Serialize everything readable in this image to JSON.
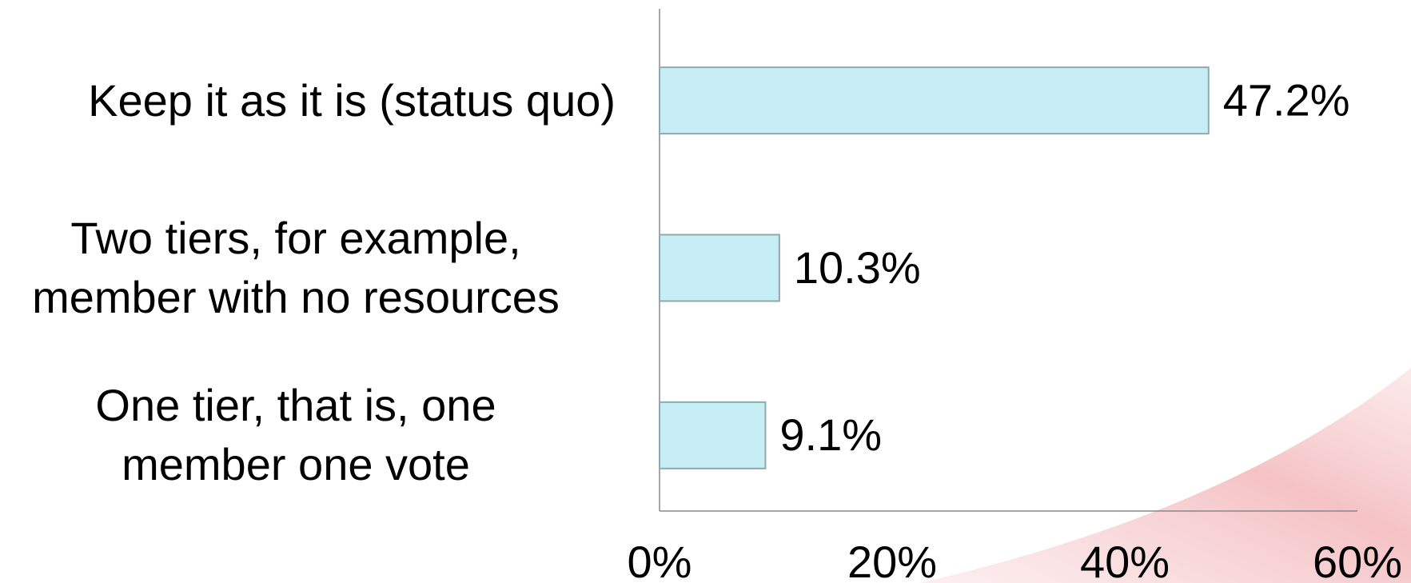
{
  "chart_data": {
    "type": "bar",
    "orientation": "horizontal",
    "categories": [
      "Keep it as it is (status quo)",
      "Two tiers, for example,\nmember with no resources",
      "One tier, that is, one\nmember one vote"
    ],
    "values": [
      47.2,
      10.3,
      9.1
    ],
    "value_labels": [
      "47.2%",
      "10.3%",
      "9.1%"
    ],
    "color": "#c8eef5",
    "xlim": [
      0,
      60
    ],
    "xticks": [
      {
        "value": 0,
        "label": "0%"
      },
      {
        "value": 20,
        "label": "20%"
      },
      {
        "value": 40,
        "label": "40%"
      },
      {
        "value": 60,
        "label": "60%"
      }
    ],
    "grid": false
  }
}
